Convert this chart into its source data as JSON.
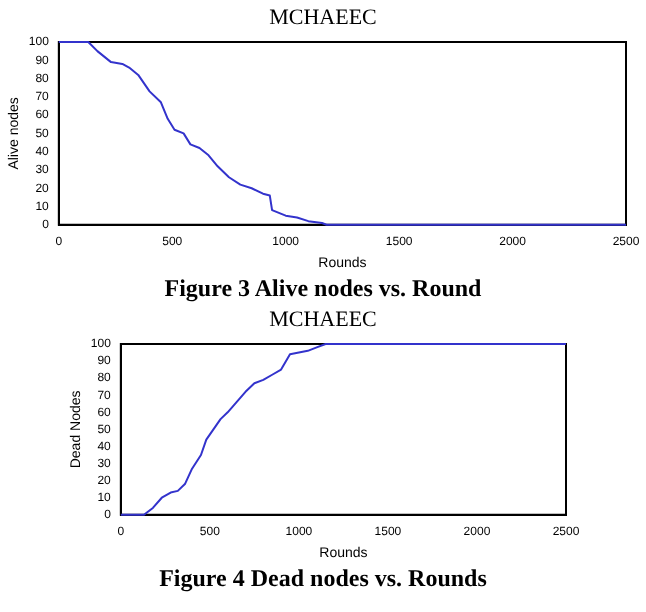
{
  "chart_data": [
    {
      "type": "line",
      "title": "MCHAEEC",
      "xlabel": "Rounds",
      "ylabel": "Alive nodes",
      "xlim": [
        0,
        2500
      ],
      "ylim": [
        0,
        100
      ],
      "xticks": [
        0,
        500,
        1000,
        1500,
        2000,
        2500
      ],
      "yticks": [
        0,
        10,
        20,
        30,
        40,
        50,
        60,
        70,
        80,
        90,
        100
      ],
      "annotations": [
        "Figure 3 Alive nodes vs. Round"
      ],
      "series": [
        {
          "color": "#3333cc",
          "x": [
            0,
            130,
            170,
            230,
            280,
            310,
            350,
            400,
            450,
            480,
            510,
            550,
            580,
            620,
            660,
            700,
            750,
            800,
            850,
            900,
            930,
            940,
            1000,
            1050,
            1100,
            1160,
            1180,
            2500
          ],
          "values": [
            100,
            100,
            95,
            89,
            88,
            86,
            82,
            73,
            67,
            58,
            52,
            50,
            44,
            42,
            38,
            32,
            26,
            22,
            20,
            17,
            16,
            8,
            5,
            4,
            2,
            1,
            0,
            0
          ]
        }
      ]
    },
    {
      "type": "line",
      "title": "MCHAEEC",
      "xlabel": "Rounds",
      "ylabel": "Dead Nodes",
      "xlim": [
        0,
        2500
      ],
      "ylim": [
        0,
        100
      ],
      "xticks": [
        0,
        500,
        1000,
        1500,
        2000,
        2500
      ],
      "yticks": [
        0,
        10,
        20,
        30,
        40,
        50,
        60,
        70,
        80,
        90,
        100
      ],
      "annotations": [
        "Figure 4 Dead nodes vs. Rounds"
      ],
      "series": [
        {
          "color": "#3333cc",
          "x": [
            0,
            130,
            180,
            230,
            280,
            320,
            360,
            400,
            450,
            480,
            520,
            560,
            600,
            650,
            700,
            750,
            800,
            850,
            900,
            950,
            1000,
            1050,
            1100,
            1150,
            2500
          ],
          "values": [
            0,
            0,
            4,
            10,
            13,
            14,
            18,
            27,
            35,
            44,
            50,
            56,
            60,
            66,
            72,
            77,
            79,
            82,
            85,
            94,
            95,
            96,
            98,
            100,
            100
          ]
        }
      ]
    }
  ]
}
